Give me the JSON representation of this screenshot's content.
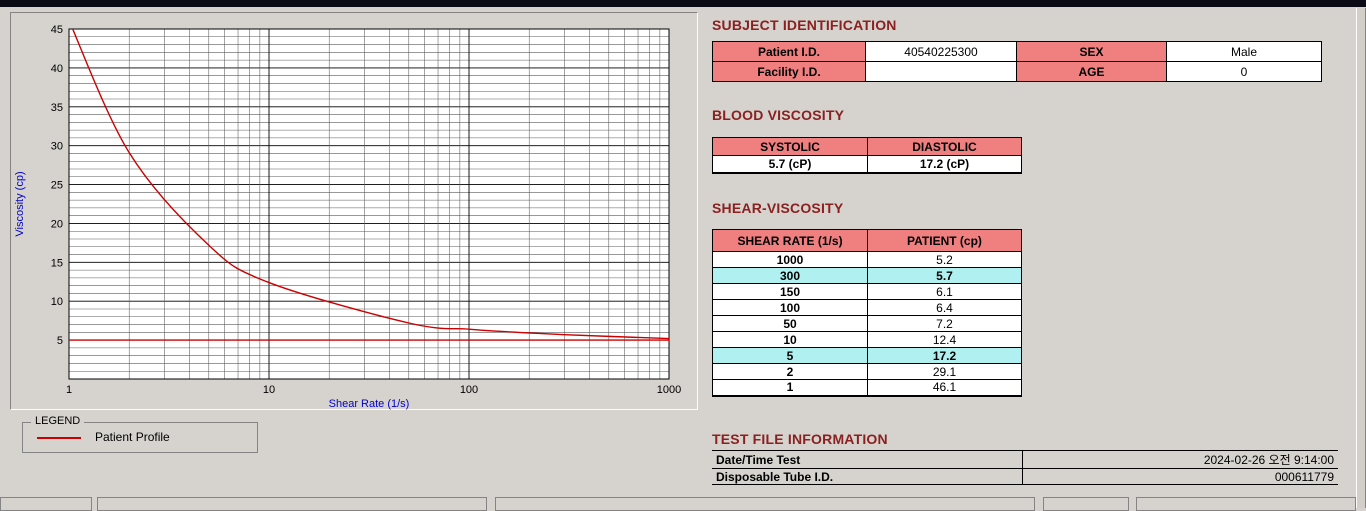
{
  "theme": {
    "accent": "#8b2020",
    "table_header_bg": "#f08080",
    "highlight_bg": "#b0f0f0",
    "series_color": "#cc0000",
    "axis_label_color": "#0000cc",
    "titlebar_color": "#0b0b16"
  },
  "legend": {
    "group_label": "LEGEND",
    "series_label": "Patient Profile"
  },
  "subject": {
    "title": "SUBJECT IDENTIFICATION",
    "rows": [
      {
        "h1": "Patient I.D.",
        "v1": "40540225300",
        "h2": "SEX",
        "v2": "Male"
      },
      {
        "h1": "Facility I.D.",
        "v1": "",
        "h2": "AGE",
        "v2": "0"
      }
    ]
  },
  "blood": {
    "title": "BLOOD VISCOSITY",
    "headers": [
      "SYSTOLIC",
      "DIASTOLIC"
    ],
    "values": [
      "5.7 (cP)",
      "17.2 (cP)"
    ]
  },
  "shear": {
    "title": "SHEAR-VISCOSITY",
    "headers": [
      "SHEAR RATE (1/s)",
      "PATIENT (cp)"
    ],
    "rows": [
      {
        "rate": "1000",
        "value": "5.2",
        "highlight": false
      },
      {
        "rate": "300",
        "value": "5.7",
        "highlight": true
      },
      {
        "rate": "150",
        "value": "6.1",
        "highlight": false
      },
      {
        "rate": "100",
        "value": "6.4",
        "highlight": false
      },
      {
        "rate": "50",
        "value": "7.2",
        "highlight": false
      },
      {
        "rate": "10",
        "value": "12.4",
        "highlight": false
      },
      {
        "rate": "5",
        "value": "17.2",
        "highlight": true
      },
      {
        "rate": "2",
        "value": "29.1",
        "highlight": false
      },
      {
        "rate": "1",
        "value": "46.1",
        "highlight": false
      }
    ]
  },
  "test_file": {
    "title": "TEST FILE INFORMATION",
    "rows": [
      {
        "label": "Date/Time Test",
        "value": "2024-02-26  오전 9:14:00"
      },
      {
        "label": "Disposable Tube I.D.",
        "value": "000611779"
      }
    ]
  },
  "chart_data": {
    "type": "line",
    "title": "",
    "xlabel": "Shear Rate (1/s)",
    "ylabel": "Viscosity (cp)",
    "x_scale": "log",
    "xlim": [
      1,
      1000
    ],
    "ylim": [
      0,
      45
    ],
    "x_ticks": [
      1,
      10,
      100,
      1000
    ],
    "y_ticks": [
      5,
      10,
      15,
      20,
      25,
      30,
      35,
      40,
      45
    ],
    "grid": true,
    "legend_position": "below",
    "series": [
      {
        "name": "Patient Profile",
        "color": "#cc0000",
        "points": [
          [
            1,
            46.1
          ],
          [
            2,
            29.1
          ],
          [
            5,
            17.2
          ],
          [
            10,
            12.4
          ],
          [
            50,
            7.2
          ],
          [
            100,
            6.4
          ],
          [
            150,
            6.1
          ],
          [
            300,
            5.7
          ],
          [
            1000,
            5.2
          ]
        ]
      },
      {
        "name": "Baseline",
        "color": "#cc0000",
        "points": [
          [
            1,
            5.0
          ],
          [
            1000,
            5.0
          ]
        ]
      }
    ]
  }
}
